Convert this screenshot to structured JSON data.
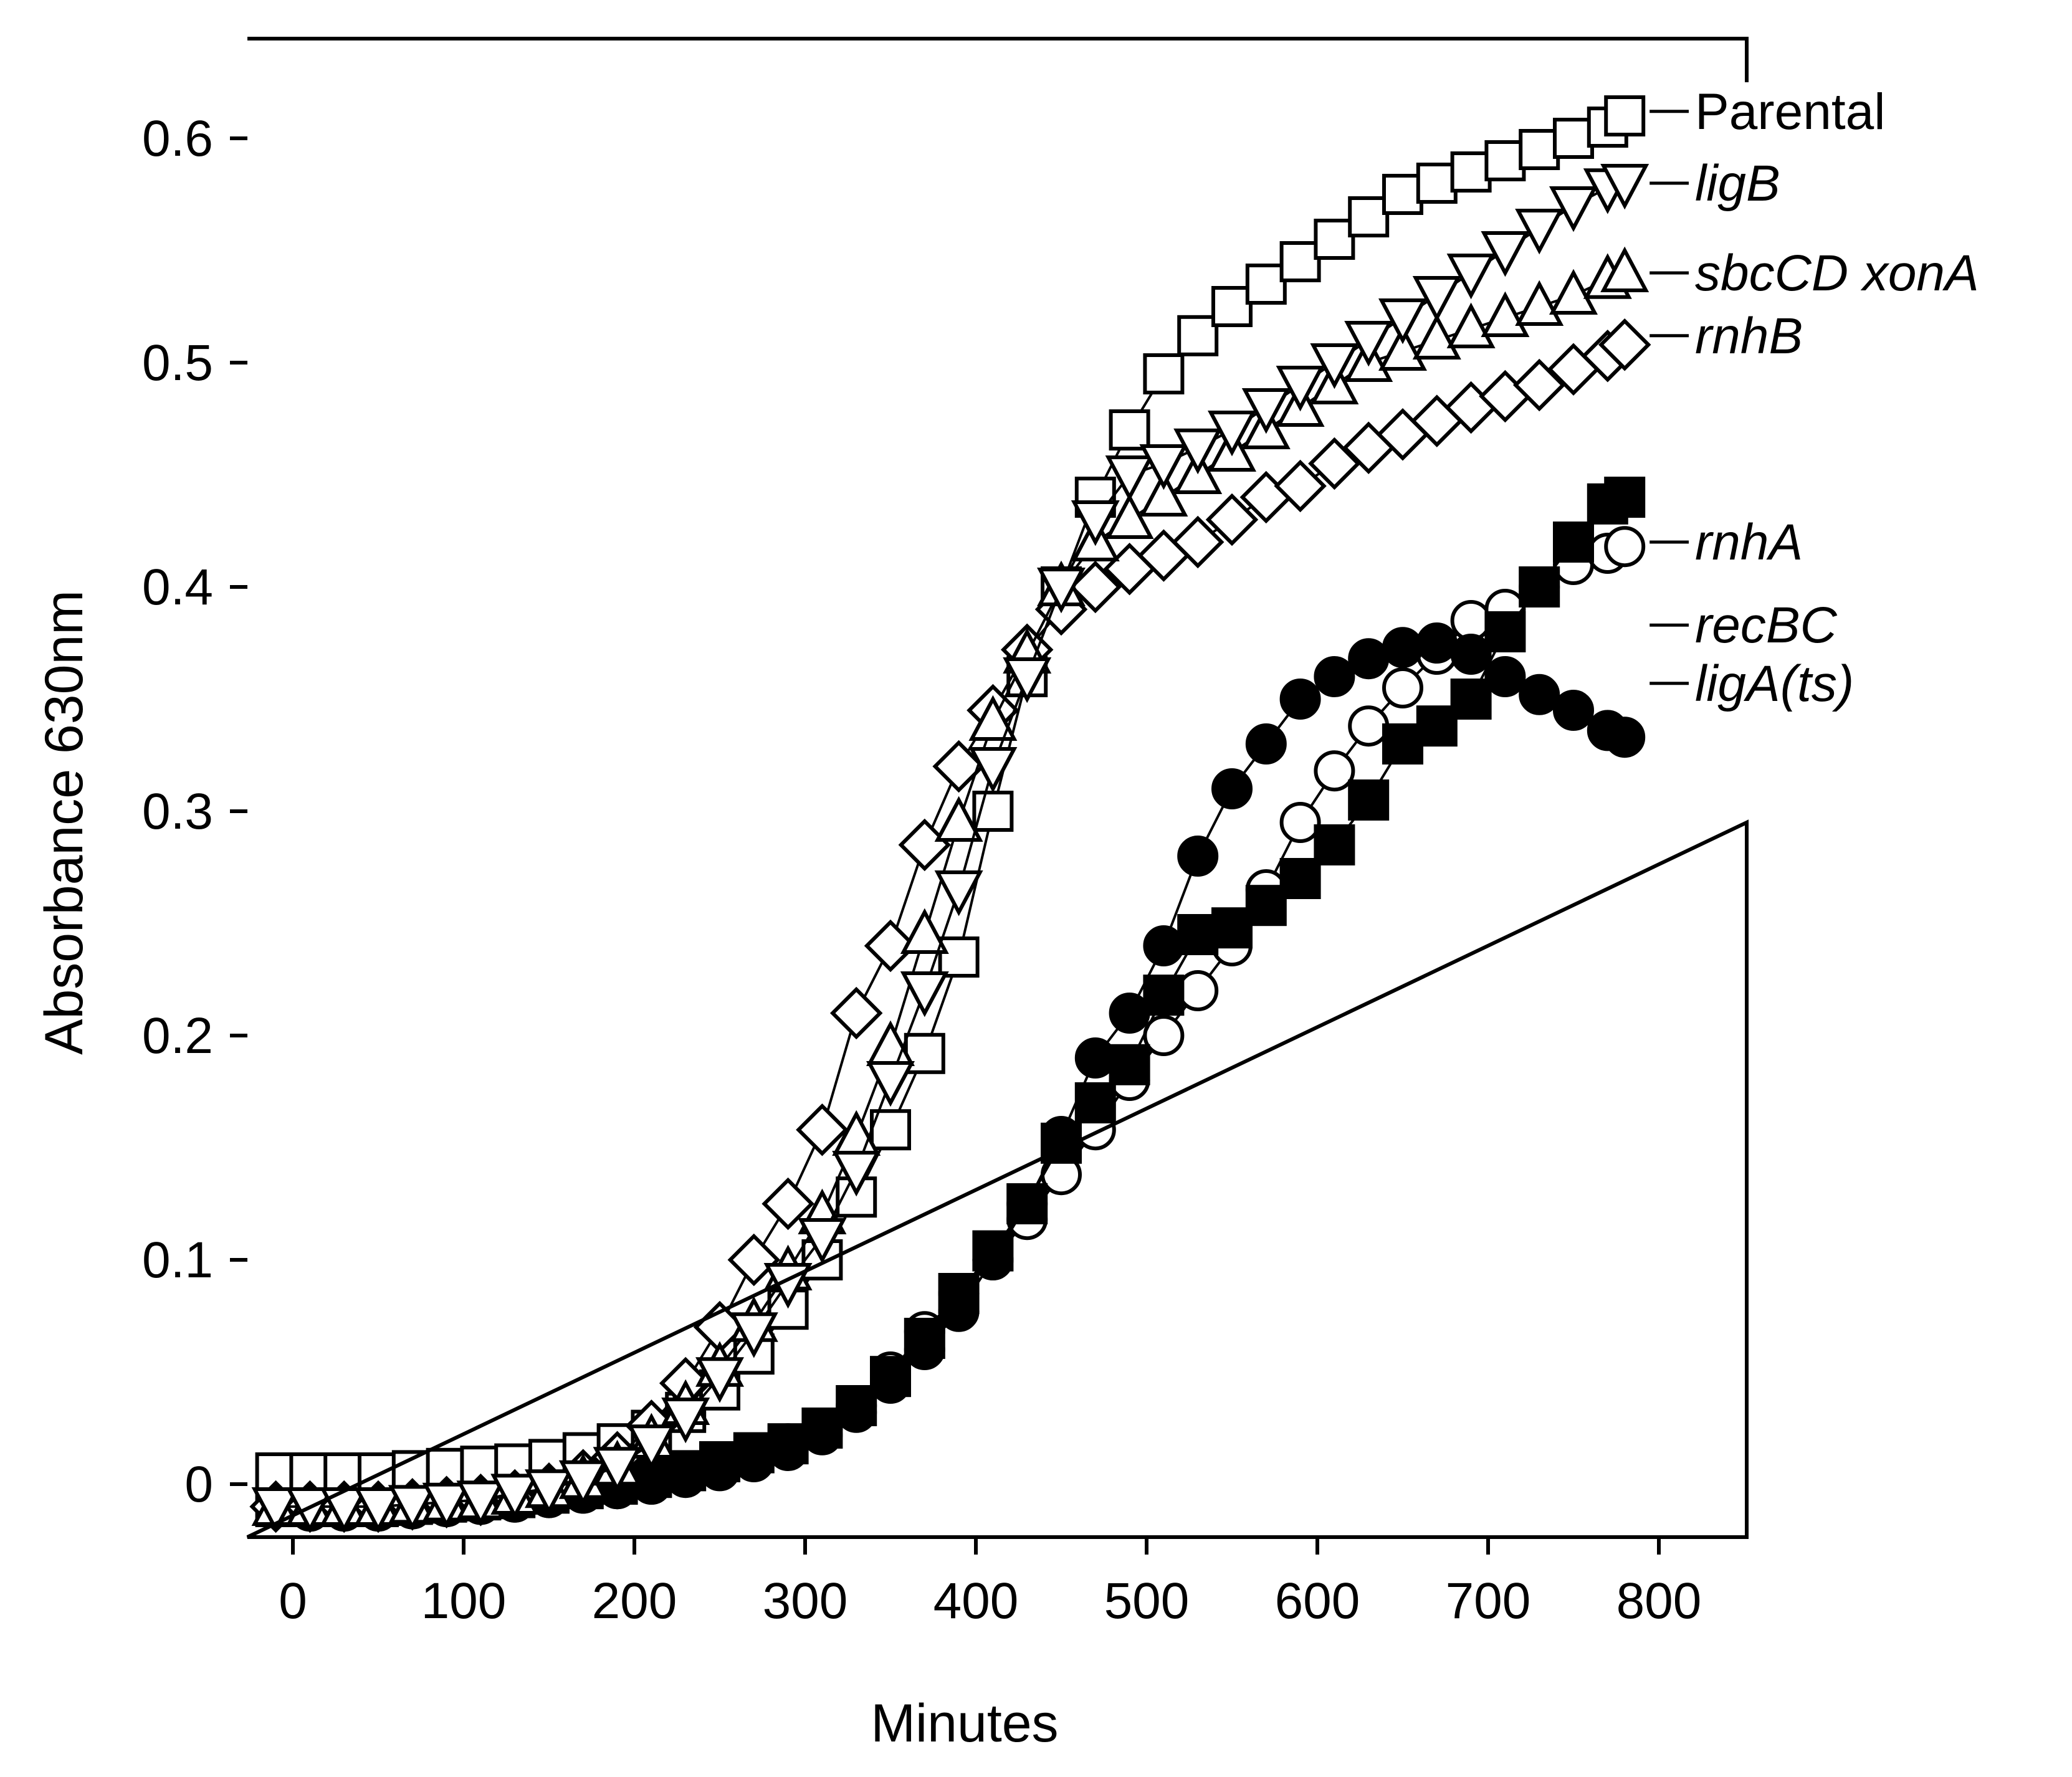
{
  "chart_data": {
    "type": "scatter",
    "xlabel": "Minutes",
    "ylabel": "Absorbance 630nm",
    "xlim": [
      -20,
      820
    ],
    "ylim": [
      -0.02,
      0.65
    ],
    "xticks": [
      0,
      100,
      200,
      300,
      400,
      500,
      600,
      700,
      800
    ],
    "yticks": [
      0,
      0.1,
      0.2,
      0.3,
      0.4,
      0.5,
      0.6
    ],
    "ytick_labels": [
      "0",
      "0.1",
      "0.2",
      "0.3",
      "0.4",
      "0.5",
      "0.6"
    ],
    "grid": false,
    "x": [
      -10,
      10,
      30,
      50,
      70,
      90,
      110,
      130,
      150,
      170,
      190,
      210,
      230,
      250,
      270,
      290,
      310,
      330,
      350,
      370,
      390,
      410,
      430,
      450,
      470,
      490,
      510,
      530,
      550,
      570,
      590,
      610,
      630,
      650,
      670,
      690,
      710,
      730,
      750,
      770,
      780
    ],
    "series": [
      {
        "name": "Parental",
        "italic": false,
        "marker": "square-open",
        "values": [
          0.005,
          0.005,
          0.005,
          0.005,
          0.006,
          0.007,
          0.008,
          0.009,
          0.011,
          0.014,
          0.018,
          0.024,
          0.032,
          0.042,
          0.058,
          0.078,
          0.1,
          0.128,
          0.158,
          0.192,
          0.235,
          0.3,
          0.36,
          0.4,
          0.44,
          0.47,
          0.495,
          0.512,
          0.525,
          0.535,
          0.545,
          0.555,
          0.565,
          0.575,
          0.58,
          0.585,
          0.59,
          0.595,
          0.6,
          0.605,
          0.61
        ]
      },
      {
        "name": "ligB",
        "italic": true,
        "marker": "triangle-down-open",
        "values": [
          -0.01,
          -0.01,
          -0.01,
          -0.01,
          -0.009,
          -0.008,
          -0.007,
          -0.004,
          -0.002,
          0.002,
          0.008,
          0.018,
          0.03,
          0.048,
          0.068,
          0.09,
          0.11,
          0.14,
          0.18,
          0.22,
          0.265,
          0.32,
          0.36,
          0.4,
          0.43,
          0.45,
          0.455,
          0.462,
          0.47,
          0.48,
          0.49,
          0.5,
          0.51,
          0.52,
          0.53,
          0.54,
          0.55,
          0.56,
          0.57,
          0.578,
          0.58
        ]
      },
      {
        "name": "sbcCD xonA",
        "italic": true,
        "marker": "triangle-up-open",
        "values": [
          -0.01,
          -0.01,
          -0.01,
          -0.01,
          -0.009,
          -0.008,
          -0.007,
          -0.005,
          -0.002,
          0.002,
          0.008,
          0.02,
          0.035,
          0.052,
          0.072,
          0.095,
          0.12,
          0.155,
          0.195,
          0.245,
          0.295,
          0.34,
          0.37,
          0.4,
          0.42,
          0.43,
          0.44,
          0.45,
          0.46,
          0.47,
          0.48,
          0.49,
          0.5,
          0.505,
          0.51,
          0.515,
          0.52,
          0.525,
          0.53,
          0.537,
          0.54
        ]
      },
      {
        "name": "rnhB",
        "italic": true,
        "marker": "diamond-open",
        "values": [
          -0.01,
          -0.01,
          -0.01,
          -0.01,
          -0.009,
          -0.008,
          -0.007,
          -0.005,
          -0.002,
          0.004,
          0.012,
          0.026,
          0.045,
          0.07,
          0.1,
          0.125,
          0.158,
          0.21,
          0.24,
          0.285,
          0.32,
          0.345,
          0.372,
          0.39,
          0.4,
          0.408,
          0.414,
          0.42,
          0.43,
          0.44,
          0.445,
          0.455,
          0.462,
          0.468,
          0.474,
          0.48,
          0.485,
          0.49,
          0.497,
          0.503,
          0.508
        ]
      },
      {
        "name": "rnhA",
        "italic": true,
        "marker": "circle-open",
        "values": [
          -0.01,
          -0.012,
          -0.012,
          -0.012,
          -0.011,
          -0.01,
          -0.009,
          -0.008,
          -0.006,
          -0.004,
          -0.002,
          0.0,
          0.004,
          0.008,
          0.012,
          0.018,
          0.025,
          0.035,
          0.05,
          0.068,
          0.085,
          0.1,
          0.118,
          0.138,
          0.158,
          0.18,
          0.2,
          0.22,
          0.24,
          0.265,
          0.295,
          0.318,
          0.338,
          0.355,
          0.37,
          0.385,
          0.39,
          0.4,
          0.41,
          0.415,
          0.418
        ]
      },
      {
        "name": "recBC",
        "italic": true,
        "marker": "square-filled",
        "values": [
          -0.01,
          -0.01,
          -0.01,
          -0.01,
          -0.009,
          -0.008,
          -0.007,
          -0.006,
          -0.004,
          -0.002,
          0.0,
          0.003,
          0.006,
          0.01,
          0.014,
          0.018,
          0.025,
          0.035,
          0.048,
          0.065,
          0.085,
          0.104,
          0.125,
          0.152,
          0.17,
          0.187,
          0.218,
          0.245,
          0.248,
          0.258,
          0.27,
          0.285,
          0.305,
          0.33,
          0.338,
          0.35,
          0.38,
          0.4,
          0.42,
          0.437,
          0.44
        ]
      },
      {
        "name": "ligA(ts)",
        "italic": true,
        "marker": "circle-filled",
        "values": [
          -0.01,
          -0.012,
          -0.012,
          -0.012,
          -0.011,
          -0.01,
          -0.009,
          -0.008,
          -0.006,
          -0.004,
          -0.002,
          0.0,
          0.003,
          0.006,
          0.01,
          0.015,
          0.022,
          0.032,
          0.045,
          0.06,
          0.077,
          0.1,
          0.125,
          0.155,
          0.19,
          0.21,
          0.24,
          0.28,
          0.31,
          0.33,
          0.35,
          0.36,
          0.368,
          0.373,
          0.375,
          0.37,
          0.36,
          0.352,
          0.345,
          0.336,
          0.333
        ]
      }
    ],
    "label_anchor_y": [
      0.612,
      0.58,
      0.54,
      0.512,
      0.42,
      0.383,
      0.357
    ]
  }
}
